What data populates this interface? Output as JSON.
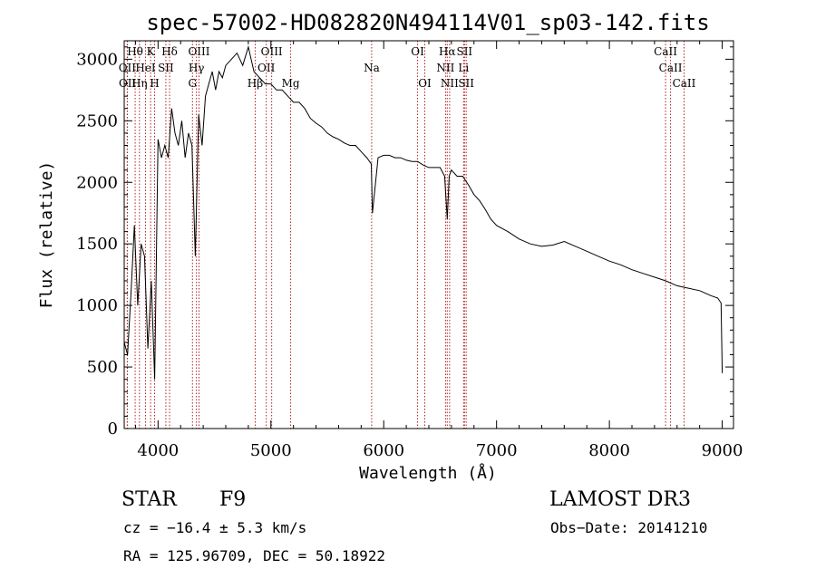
{
  "chart_data": {
    "type": "line",
    "title": "spec-57002-HD082820N494114V01_sp03-142.fits",
    "xlabel": "Wavelength (Å)",
    "ylabel": "Flux (relative)",
    "xlim": [
      3700,
      9100
    ],
    "ylim": [
      0,
      3150
    ],
    "x_ticks": [
      "4000",
      "5000",
      "6000",
      "7000",
      "8000",
      "9000"
    ],
    "y_ticks": [
      "0",
      "500",
      "1000",
      "1500",
      "2000",
      "2500",
      "3000"
    ],
    "grid": false,
    "series": [
      {
        "x": [
          3700,
          3730,
          3760,
          3790,
          3820,
          3850,
          3880,
          3910,
          3940,
          3970,
          4000,
          4030,
          4060,
          4090,
          4120,
          4150,
          4180,
          4210,
          4240,
          4270,
          4300,
          4330,
          4360,
          4390,
          4420,
          4450,
          4480,
          4510,
          4540,
          4570,
          4600,
          4650,
          4700,
          4750,
          4800,
          4850,
          4900,
          4950,
          5000,
          5050,
          5100,
          5150,
          5200,
          5250,
          5300,
          5350,
          5400,
          5450,
          5500,
          5550,
          5600,
          5650,
          5700,
          5750,
          5800,
          5850,
          5890,
          5900,
          5950,
          6000,
          6050,
          6100,
          6150,
          6200,
          6250,
          6300,
          6350,
          6400,
          6450,
          6500,
          6540,
          6563,
          6580,
          6600,
          6650,
          6700,
          6750,
          6800,
          6850,
          6900,
          6950,
          7000,
          7100,
          7200,
          7300,
          7400,
          7500,
          7600,
          7700,
          7800,
          7900,
          8000,
          8100,
          8200,
          8300,
          8400,
          8500,
          8600,
          8700,
          8800,
          8900,
          8960,
          8990,
          9000
        ],
        "y": [
          700,
          600,
          1100,
          1650,
          1000,
          1500,
          1400,
          650,
          1200,
          400,
          2350,
          2200,
          2300,
          2200,
          2600,
          2400,
          2300,
          2500,
          2200,
          2400,
          2300,
          1400,
          2550,
          2300,
          2700,
          2800,
          2900,
          2750,
          2900,
          2850,
          2950,
          3000,
          3050,
          2950,
          3100,
          2900,
          2850,
          2800,
          2800,
          2750,
          2750,
          2700,
          2650,
          2650,
          2600,
          2520,
          2480,
          2450,
          2400,
          2370,
          2350,
          2320,
          2300,
          2300,
          2250,
          2200,
          2150,
          1750,
          2200,
          2220,
          2220,
          2200,
          2200,
          2180,
          2170,
          2170,
          2140,
          2120,
          2120,
          2120,
          2050,
          1700,
          2050,
          2100,
          2050,
          2050,
          1980,
          1900,
          1850,
          1780,
          1700,
          1650,
          1600,
          1540,
          1500,
          1480,
          1490,
          1520,
          1480,
          1440,
          1400,
          1360,
          1330,
          1290,
          1260,
          1230,
          1200,
          1160,
          1140,
          1120,
          1080,
          1060,
          1020,
          450
        ]
      }
    ],
    "lines": [
      {
        "label": "Hθ",
        "x": 3797,
        "row": 0
      },
      {
        "label": "K",
        "x": 3934,
        "row": 0
      },
      {
        "label": "Hδ",
        "x": 4102,
        "row": 0
      },
      {
        "label": "OIII",
        "x": 4363,
        "row": 0
      },
      {
        "label": "OIII",
        "x": 5007,
        "row": 0
      },
      {
        "label": "OI",
        "x": 6300,
        "row": 0
      },
      {
        "label": "Hα",
        "x": 6563,
        "row": 0
      },
      {
        "label": "SII",
        "x": 6716,
        "row": 0
      },
      {
        "label": "CaII",
        "x": 8498,
        "row": 0
      },
      {
        "label": "OII",
        "x": 3727,
        "row": 1
      },
      {
        "label": "HeI",
        "x": 3889,
        "row": 1
      },
      {
        "label": "SII",
        "x": 4069,
        "row": 1
      },
      {
        "label": "Hγ",
        "x": 4340,
        "row": 1
      },
      {
        "label": "OII",
        "x": 4959,
        "row": 1
      },
      {
        "label": "Na",
        "x": 5893,
        "row": 1
      },
      {
        "label": "NII",
        "x": 6548,
        "row": 1
      },
      {
        "label": "Li",
        "x": 6708,
        "row": 1
      },
      {
        "label": "CaII",
        "x": 8542,
        "row": 1
      },
      {
        "label": "OII",
        "x": 3729,
        "row": 2
      },
      {
        "label": "Hη",
        "x": 3835,
        "row": 2
      },
      {
        "label": "H",
        "x": 3969,
        "row": 2
      },
      {
        "label": "G",
        "x": 4305,
        "row": 2
      },
      {
        "label": "Hβ",
        "x": 4861,
        "row": 2
      },
      {
        "label": "Mg",
        "x": 5175,
        "row": 2
      },
      {
        "label": "OI",
        "x": 6364,
        "row": 2
      },
      {
        "label": "NII",
        "x": 6584,
        "row": 2
      },
      {
        "label": "SII",
        "x": 6731,
        "row": 2
      },
      {
        "label": "CaII",
        "x": 8662,
        "row": 2
      }
    ]
  },
  "info": {
    "type": "STAR",
    "subclass": "F9",
    "survey": "LAMOST DR3",
    "cz": "cz = −16.4 ± 5.3 km/s",
    "obs_date": "Obs−Date: 20141210",
    "coords": "RA = 125.96709, DEC =  50.18922"
  }
}
